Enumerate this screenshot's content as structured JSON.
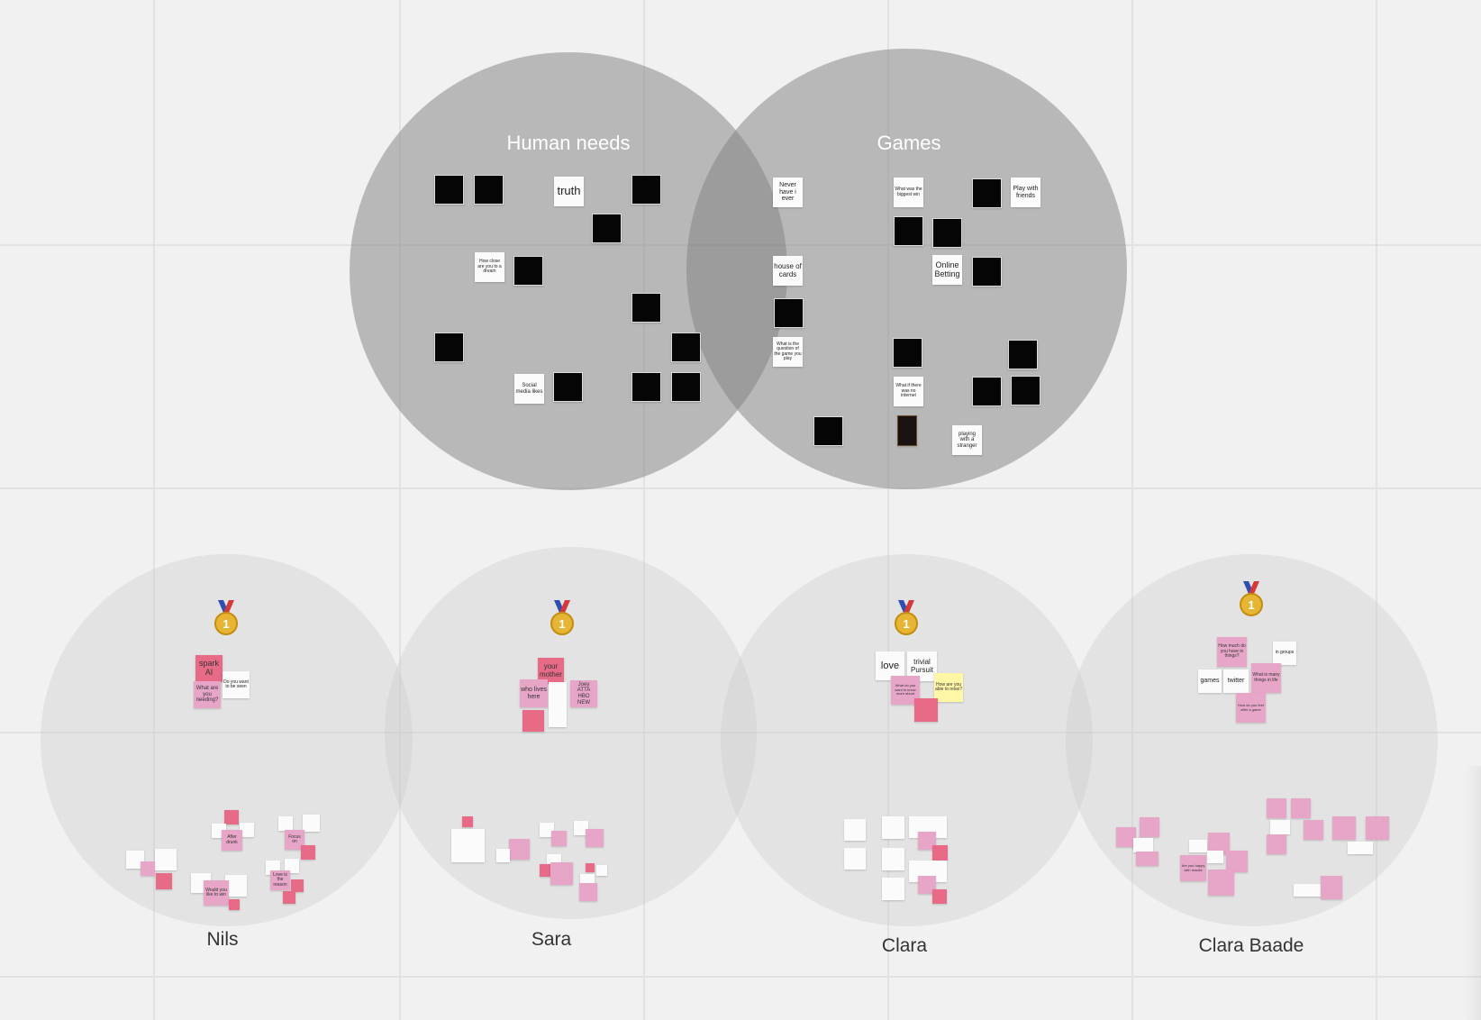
{
  "canvas": {
    "background": "#f1f1f1",
    "grid_color": "#e2e2e2"
  },
  "venn": {
    "left_title": "Human needs",
    "right_title": "Games",
    "circle_color": "#808080"
  },
  "sticky_notes": {
    "truth": "truth",
    "small_dream": "How close are you to a dream",
    "social": "Social media likes",
    "never_have_i_ever": "Never have i ever",
    "what_the_bigger": "What was the biggest win",
    "play_with_friends": "Play with friends",
    "house_of_cards": "house of cards",
    "online_betting": "Online Betting",
    "small_question": "What is the question of the game you play",
    "what_if": "What if there was no internet",
    "playing_game": "playing with a stranger"
  },
  "participants": [
    {
      "name": "Nils",
      "medal": "1",
      "notes": {
        "spark": "spark AI",
        "need": "What are you needing?",
        "white": "Do you want to be seen",
        "bottom1": "After drunk",
        "bottom2": "Would you like to win",
        "bottom3": "Focus on",
        "bottom4": "Love is the reason"
      }
    },
    {
      "name": "Sara",
      "medal": "1",
      "notes": {
        "mother": "your mother",
        "here": "who lives here",
        "hbo": "Joey ATTA HBO NEW"
      }
    },
    {
      "name": "Clara",
      "medal": "1",
      "notes": {
        "love": "love",
        "trivial": "trivial Pursuit",
        "pink": "What do you want to know more about",
        "yellow": "How are you able to relax?"
      }
    },
    {
      "name": "Clara Baade",
      "medal": "1",
      "notes": {
        "top": "How much do you have in things?",
        "games": "games",
        "twitter": "twitter",
        "small": "in groups",
        "mid": "What is many things in life",
        "low": "How do you feel after a game",
        "bottom": "Are you happy with results"
      }
    }
  ],
  "colors": {
    "pink": "#e7a6c8",
    "red": "#e76b86",
    "yellow": "#fff6a6",
    "black": "#050505"
  }
}
